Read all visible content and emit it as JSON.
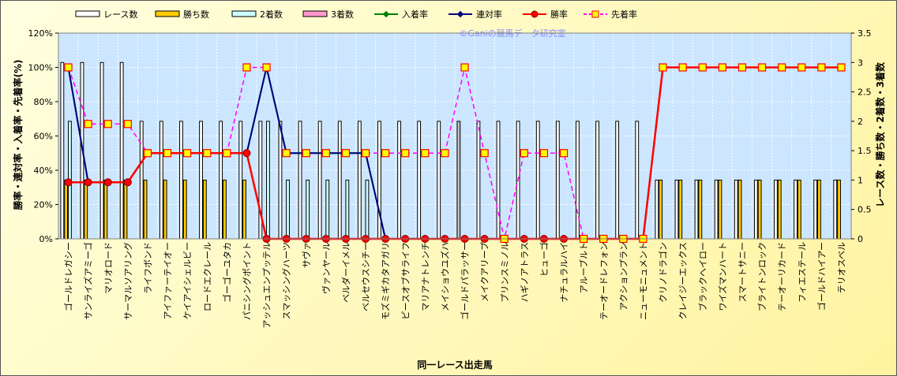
{
  "chart_data": {
    "type": "bar",
    "watermark": "©Ganiの競馬データ研究室",
    "xlabel": "同一レース出走馬",
    "ylabel_left": "勝率・連対率・入着率・先着率(%)",
    "ylabel_right": "レース数・勝ち数・2着数・3着数",
    "ylim_left": [
      0,
      120
    ],
    "ylim_right": [
      0,
      3.5
    ],
    "left_ticks": [
      "0%",
      "20%",
      "40%",
      "60%",
      "80%",
      "100%",
      "120%"
    ],
    "right_ticks": [
      "0",
      "0.5",
      "1",
      "1.5",
      "2",
      "2.5",
      "3",
      "3.5"
    ],
    "grid": true,
    "legend_position": "top",
    "colors": {
      "races": "#ffffff",
      "races_gray": "#c0c0c0",
      "wins": "#ffcc00",
      "second": "#ccffff",
      "third": "#ff99cc",
      "place_rate": "#008000",
      "rentai_rate": "#000080",
      "win_rate": "#ff0000",
      "senchaku_rate": "#ff00ff",
      "plot_bg": "#cce6ff"
    },
    "categories": [
      "ゴールドレガシー",
      "サンライズアミーゴ",
      "マリオロード",
      "サーマルソアリング",
      "ライフボンド",
      "アイファーテイオー",
      "ケイアイシェルビー",
      "ロードエクレール",
      "ゴーゴーユタカ",
      "パニシングポイント",
      "アッシュエンプッテル",
      "スマッシングハーツ",
      "サヴァ",
      "ヴァンヤール",
      "ベルダーイメル",
      "ベルセウスシチー",
      "モズミギカタアガリ",
      "ピースオブサライフ",
      "マリアナトレンチ",
      "メイショウユズハ",
      "ゴールドパラッサー",
      "メイクアリープ",
      "プリンスミノル",
      "ハギノアトラス",
      "ヒューゴ",
      "ナチュラルハイ",
      "アルーブルト",
      "テーオードレフォン",
      "アクションプラン",
      "ニューモニュメント",
      "クリノドラゴン",
      "クレイジーエックス",
      "ブラックヘイロー",
      "ワイズマンハート",
      "スマートサニー",
      "ブライトンロック",
      "テーオーリカード",
      "フィエステール",
      "ゴールドハイアー",
      "テリオスベル"
    ],
    "series": [
      {
        "name": "レース数",
        "axis": "right",
        "values": [
          3,
          3,
          3,
          3,
          2,
          2,
          2,
          2,
          2,
          2,
          2,
          2,
          2,
          2,
          2,
          2,
          2,
          2,
          2,
          2,
          2,
          2,
          2,
          2,
          2,
          2,
          2,
          2,
          2,
          2,
          1,
          1,
          1,
          1,
          1,
          1,
          1,
          1,
          1,
          1
        ]
      },
      {
        "name": "勝ち数",
        "axis": "right",
        "values": [
          1,
          1,
          1,
          1,
          1,
          1,
          1,
          1,
          1,
          1,
          0,
          0,
          0,
          0,
          0,
          0,
          0,
          0,
          0,
          0,
          0,
          0,
          0,
          0,
          0,
          0,
          0,
          0,
          0,
          0,
          1,
          1,
          1,
          1,
          1,
          1,
          1,
          1,
          1,
          1
        ]
      },
      {
        "name": "2着数",
        "axis": "right",
        "values": [
          2,
          0,
          0,
          0,
          0,
          0,
          0,
          0,
          0,
          0,
          2,
          1,
          1,
          1,
          1,
          1,
          0,
          0,
          0,
          0,
          0,
          0,
          0,
          0,
          0,
          0,
          0,
          0,
          0,
          0,
          0,
          0,
          0,
          0,
          0,
          0,
          0,
          0,
          0,
          0
        ]
      },
      {
        "name": "3着数",
        "axis": "right",
        "values": [
          0,
          0,
          0,
          0,
          0,
          0,
          0,
          0,
          0,
          0,
          0,
          0,
          0,
          0,
          0,
          0,
          0,
          0,
          0,
          0,
          0,
          0,
          0,
          0,
          0,
          0,
          0,
          0,
          0,
          0,
          0,
          0,
          0,
          0,
          0,
          0,
          0,
          0,
          0,
          0
        ]
      },
      {
        "name": "入着率",
        "axis": "left",
        "values": [
          100,
          33,
          33,
          33,
          50,
          50,
          50,
          50,
          50,
          50,
          100,
          50,
          50,
          50,
          50,
          50,
          0,
          0,
          0,
          0,
          0,
          0,
          0,
          0,
          0,
          0,
          0,
          0,
          0,
          0,
          100,
          100,
          100,
          100,
          100,
          100,
          100,
          100,
          100,
          100
        ]
      },
      {
        "name": "連対率",
        "axis": "left",
        "values": [
          100,
          33,
          33,
          33,
          50,
          50,
          50,
          50,
          50,
          50,
          100,
          50,
          50,
          50,
          50,
          50,
          0,
          0,
          0,
          0,
          0,
          0,
          0,
          0,
          0,
          0,
          0,
          0,
          0,
          0,
          100,
          100,
          100,
          100,
          100,
          100,
          100,
          100,
          100,
          100
        ]
      },
      {
        "name": "勝率",
        "axis": "left",
        "values": [
          33,
          33,
          33,
          33,
          50,
          50,
          50,
          50,
          50,
          50,
          0,
          0,
          0,
          0,
          0,
          0,
          0,
          0,
          0,
          0,
          0,
          0,
          0,
          0,
          0,
          0,
          0,
          0,
          0,
          0,
          100,
          100,
          100,
          100,
          100,
          100,
          100,
          100,
          100,
          100
        ]
      },
      {
        "name": "先着率",
        "axis": "left",
        "values": [
          100,
          67,
          67,
          67,
          50,
          50,
          50,
          50,
          50,
          100,
          100,
          50,
          50,
          50,
          50,
          50,
          50,
          50,
          50,
          50,
          100,
          50,
          0,
          50,
          50,
          50,
          0,
          0,
          0,
          0,
          100,
          100,
          100,
          100,
          100,
          100,
          100,
          100,
          100,
          100
        ]
      }
    ],
    "gray_race_bar_index": 20
  }
}
